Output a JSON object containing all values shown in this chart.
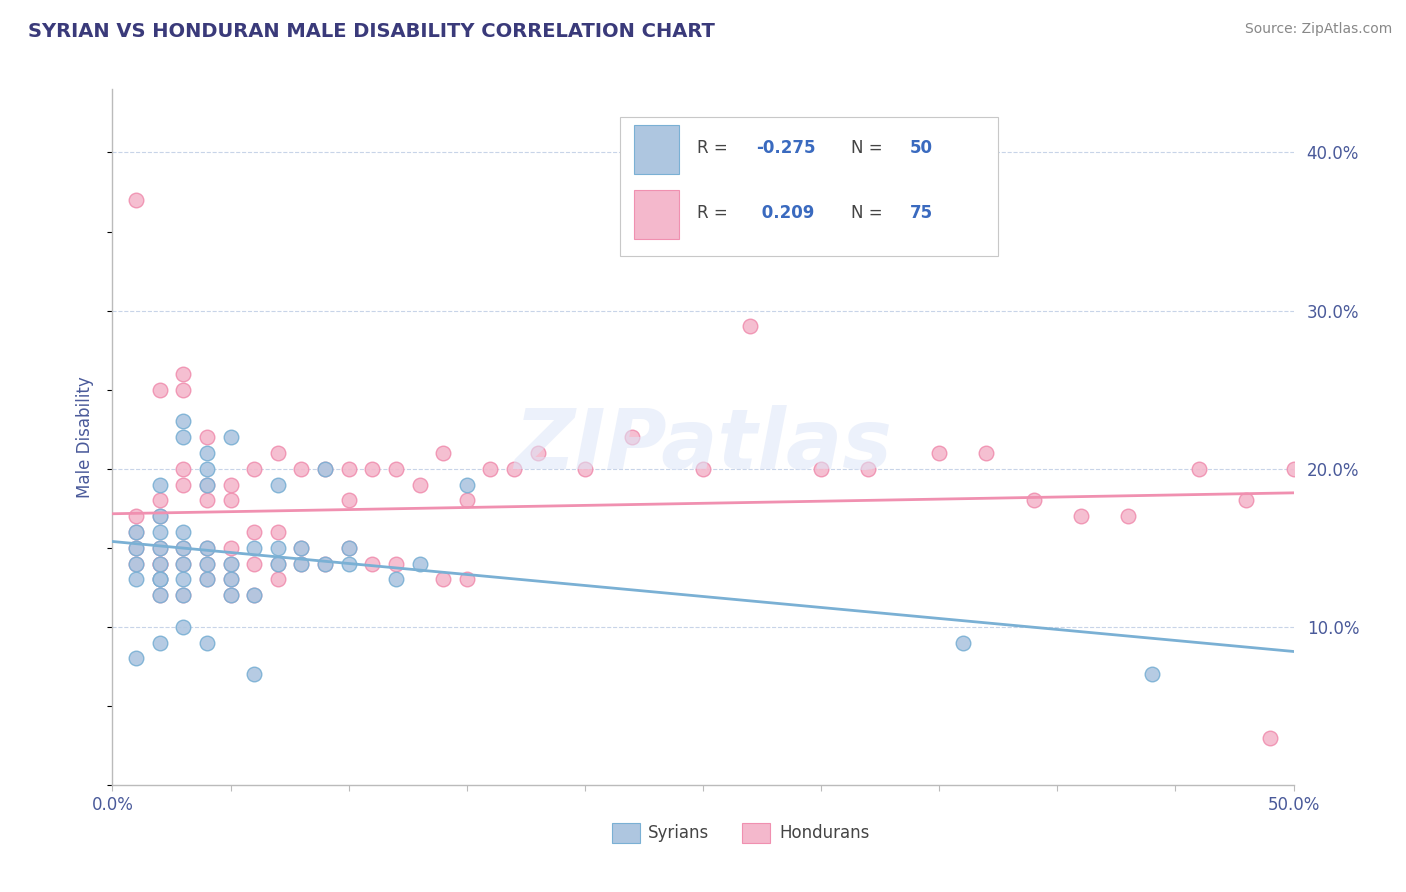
{
  "title": "SYRIAN VS HONDURAN MALE DISABILITY CORRELATION CHART",
  "source": "Source: ZipAtlas.com",
  "ylabel": "Male Disability",
  "xlim": [
    0.0,
    0.5
  ],
  "ylim": [
    0.0,
    0.44
  ],
  "syrian_fill": "#aec6e0",
  "syrian_edge": "#7ab0d4",
  "honduran_fill": "#f4b8cc",
  "honduran_edge": "#f090b0",
  "title_color": "#3a3a7a",
  "axis_color": "#4a5a9a",
  "grid_color": "#c8d4e8",
  "legend_val_color": "#3a6abf",
  "syrian_R": -0.275,
  "honduran_R": 0.209,
  "syrian_N": 50,
  "honduran_N": 75,
  "syrian_x": [
    0.01,
    0.01,
    0.01,
    0.01,
    0.01,
    0.02,
    0.02,
    0.02,
    0.02,
    0.02,
    0.02,
    0.02,
    0.02,
    0.02,
    0.03,
    0.03,
    0.03,
    0.03,
    0.03,
    0.03,
    0.03,
    0.03,
    0.04,
    0.04,
    0.04,
    0.04,
    0.04,
    0.04,
    0.04,
    0.05,
    0.05,
    0.05,
    0.05,
    0.06,
    0.06,
    0.06,
    0.07,
    0.07,
    0.07,
    0.08,
    0.08,
    0.09,
    0.09,
    0.1,
    0.1,
    0.12,
    0.13,
    0.15,
    0.36,
    0.44
  ],
  "syrian_y": [
    0.13,
    0.14,
    0.15,
    0.16,
    0.08,
    0.09,
    0.12,
    0.13,
    0.13,
    0.14,
    0.15,
    0.16,
    0.17,
    0.19,
    0.1,
    0.12,
    0.13,
    0.14,
    0.15,
    0.16,
    0.22,
    0.23,
    0.09,
    0.13,
    0.14,
    0.15,
    0.19,
    0.2,
    0.21,
    0.12,
    0.13,
    0.14,
    0.22,
    0.07,
    0.12,
    0.15,
    0.14,
    0.15,
    0.19,
    0.14,
    0.15,
    0.14,
    0.2,
    0.14,
    0.15,
    0.13,
    0.14,
    0.19,
    0.09,
    0.07
  ],
  "honduran_x": [
    0.01,
    0.01,
    0.01,
    0.01,
    0.01,
    0.02,
    0.02,
    0.02,
    0.02,
    0.02,
    0.02,
    0.02,
    0.02,
    0.03,
    0.03,
    0.03,
    0.03,
    0.03,
    0.03,
    0.03,
    0.04,
    0.04,
    0.04,
    0.04,
    0.04,
    0.04,
    0.05,
    0.05,
    0.05,
    0.05,
    0.05,
    0.05,
    0.06,
    0.06,
    0.06,
    0.06,
    0.07,
    0.07,
    0.07,
    0.07,
    0.08,
    0.08,
    0.08,
    0.09,
    0.09,
    0.1,
    0.1,
    0.1,
    0.11,
    0.11,
    0.12,
    0.12,
    0.13,
    0.14,
    0.14,
    0.15,
    0.15,
    0.16,
    0.17,
    0.18,
    0.2,
    0.22,
    0.25,
    0.27,
    0.3,
    0.32,
    0.35,
    0.37,
    0.39,
    0.41,
    0.43,
    0.46,
    0.48,
    0.49,
    0.5
  ],
  "honduran_y": [
    0.14,
    0.15,
    0.16,
    0.17,
    0.37,
    0.12,
    0.13,
    0.14,
    0.14,
    0.15,
    0.17,
    0.18,
    0.25,
    0.12,
    0.14,
    0.15,
    0.19,
    0.2,
    0.25,
    0.26,
    0.13,
    0.14,
    0.15,
    0.18,
    0.19,
    0.22,
    0.12,
    0.13,
    0.14,
    0.15,
    0.18,
    0.19,
    0.12,
    0.14,
    0.16,
    0.2,
    0.13,
    0.14,
    0.16,
    0.21,
    0.14,
    0.15,
    0.2,
    0.14,
    0.2,
    0.15,
    0.18,
    0.2,
    0.14,
    0.2,
    0.14,
    0.2,
    0.19,
    0.13,
    0.21,
    0.13,
    0.18,
    0.2,
    0.2,
    0.21,
    0.2,
    0.22,
    0.2,
    0.29,
    0.2,
    0.2,
    0.21,
    0.21,
    0.18,
    0.17,
    0.17,
    0.2,
    0.18,
    0.03,
    0.2
  ]
}
